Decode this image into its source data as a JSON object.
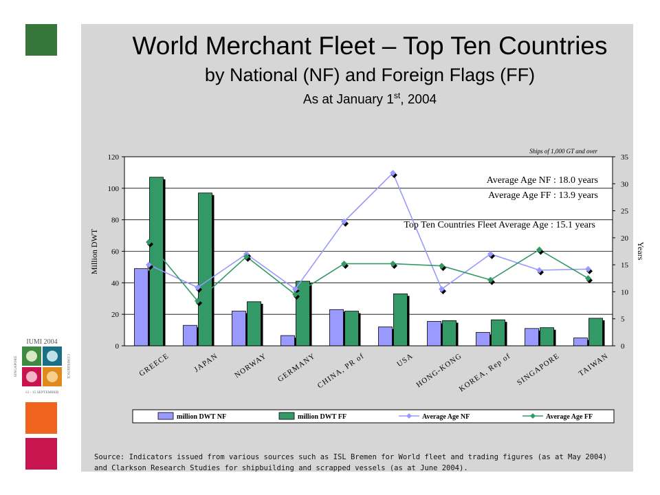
{
  "slide": {
    "title": "World Merchant Fleet – Top Ten Countries",
    "subtitle": "by National (NF) and Foreign Flags (FF)",
    "date_prefix": "As at January 1",
    "date_sup": "st",
    "date_suffix": ", 2004",
    "source_line1": "Source: Indicators issued from various sources such as ISL Bremen for World fleet and trading figures (as at May 2004)",
    "source_line2": "and Clarkson Research Studies for shipbuilding and scrapped vessels (as at June 2004).",
    "logo_text": "IUMI 2004",
    "logo_side": "CONFERENCE",
    "logo_left": "SINGAPORE",
    "logo_bottom": "12 - 15 SEPTEMBER",
    "colors": {
      "accent_green": "#37763a",
      "accent_orange": "#f0641f",
      "accent_magenta": "#c8154f",
      "panel": "#d6d6d6"
    }
  },
  "chart_data": {
    "type": "bar",
    "note": "Ships of  1,000 GT and over",
    "categories": [
      "GREECE",
      "JAPAN",
      "NORWAY",
      "GERMANY",
      "CHINA, PR of",
      "USA",
      "HONG-KONG",
      "KOREA, Rep of",
      "SINGAPORE",
      "TAIWAN"
    ],
    "ylabel": "Million DWT",
    "y2label": "Years",
    "ylim": [
      0,
      120
    ],
    "y2lim": [
      0,
      35
    ],
    "yticks": [
      0,
      20,
      40,
      60,
      80,
      100,
      120
    ],
    "y2ticks": [
      0,
      5,
      10,
      15,
      20,
      25,
      30,
      35
    ],
    "series": [
      {
        "name": "million DWT NF",
        "kind": "bar",
        "axis": "left",
        "color": "#9999ff",
        "values": [
          49,
          13,
          22,
          6.5,
          23,
          12,
          15.5,
          8.5,
          11,
          5
        ]
      },
      {
        "name": "million DWT FF",
        "kind": "bar",
        "axis": "left",
        "color": "#339966",
        "values": [
          107,
          97,
          28,
          41,
          22,
          33,
          16,
          16.5,
          11.5,
          17.5
        ]
      },
      {
        "name": "Average Age NF",
        "kind": "line",
        "axis": "right",
        "color": "#9999ff",
        "values": [
          15,
          10.8,
          17,
          10.5,
          23,
          32,
          10.5,
          17,
          14,
          14.2
        ]
      },
      {
        "name": "Average Age FF",
        "kind": "line",
        "axis": "right",
        "color": "#339966",
        "values": [
          19.2,
          8.3,
          16.5,
          9.5,
          15.2,
          15.2,
          14.8,
          12.2,
          17.8,
          12.5
        ]
      }
    ],
    "annotations": [
      "Average Age NF : 18.0 years",
      "Average Age FF : 13.9 years",
      "Top Ten Countries Fleet Average Age : 15.1 years"
    ],
    "grid": true,
    "legend_position": "bottom"
  }
}
